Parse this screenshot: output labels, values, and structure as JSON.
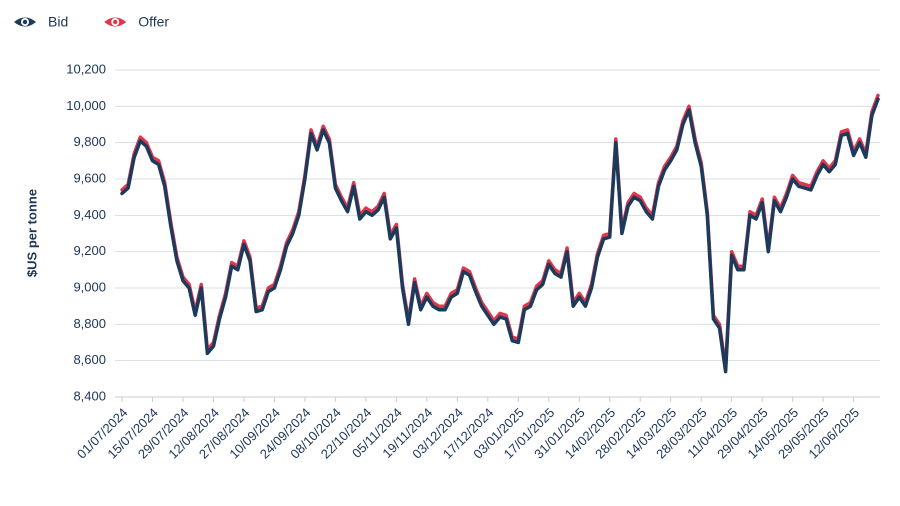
{
  "chart_data": {
    "type": "line",
    "y_label": "$US per tonne",
    "ylim": [
      8400,
      10200
    ],
    "yticks": [
      {
        "value": 8400,
        "label": "8,400"
      },
      {
        "value": 8600,
        "label": "8,600"
      },
      {
        "value": 8800,
        "label": "8,800"
      },
      {
        "value": 9000,
        "label": "9,000"
      },
      {
        "value": 9200,
        "label": "9,200"
      },
      {
        "value": 9400,
        "label": "9,400"
      },
      {
        "value": 9600,
        "label": "9,600"
      },
      {
        "value": 9800,
        "label": "9,800"
      },
      {
        "value": 10000,
        "label": "10,000"
      },
      {
        "value": 10200,
        "label": "10,200"
      }
    ],
    "grid": true,
    "legend": "top-left",
    "categories": [
      "01/07/2024",
      null,
      null,
      null,
      null,
      "15/07/2024",
      null,
      null,
      null,
      null,
      "29/07/2024",
      null,
      null,
      null,
      null,
      "12/08/2024",
      null,
      null,
      null,
      null,
      "27/08/2024",
      null,
      null,
      null,
      null,
      "10/09/2024",
      null,
      null,
      null,
      null,
      "24/09/2024",
      null,
      null,
      null,
      null,
      "08/10/2024",
      null,
      null,
      null,
      null,
      "22/10/2024",
      null,
      null,
      null,
      null,
      "05/11/2024",
      null,
      null,
      null,
      null,
      "19/11/2024",
      null,
      null,
      null,
      null,
      "03/12/2024",
      null,
      null,
      null,
      null,
      "17/12/2024",
      null,
      null,
      null,
      null,
      "03/01/2025",
      null,
      null,
      null,
      null,
      "17/01/2025",
      null,
      null,
      null,
      null,
      "31/01/2025",
      null,
      null,
      null,
      null,
      "14/02/2025",
      null,
      null,
      null,
      null,
      "28/02/2025",
      null,
      null,
      null,
      null,
      "14/03/2025",
      null,
      null,
      null,
      null,
      "28/03/2025",
      null,
      null,
      null,
      null,
      "11/04/2025",
      null,
      null,
      null,
      null,
      "29/04/2025",
      null,
      null,
      null,
      null,
      "14/05/2025",
      null,
      null,
      null,
      null,
      "29/05/2025",
      null,
      null,
      null,
      null,
      "12/06/2025",
      null,
      null,
      null,
      null
    ],
    "series": [
      {
        "name": "Bid",
        "color": "#1b3a5c",
        "values": [
          9520,
          9550,
          9720,
          9810,
          9780,
          9700,
          9680,
          9560,
          9340,
          9150,
          9040,
          9000,
          8850,
          9000,
          8640,
          8680,
          8830,
          8950,
          9120,
          9100,
          9240,
          9150,
          8870,
          8880,
          8980,
          9000,
          9100,
          9230,
          9300,
          9400,
          9600,
          9850,
          9760,
          9870,
          9800,
          9550,
          9480,
          9420,
          9560,
          9380,
          9420,
          9400,
          9430,
          9500,
          9270,
          9330,
          9000,
          8800,
          9030,
          8880,
          8950,
          8900,
          8880,
          8880,
          8950,
          8970,
          9090,
          9070,
          8980,
          8900,
          8850,
          8800,
          8840,
          8830,
          8710,
          8700,
          8880,
          8900,
          8990,
          9020,
          9130,
          9080,
          9060,
          9200,
          8900,
          8950,
          8900,
          9000,
          9170,
          9270,
          9280,
          9800,
          9300,
          9450,
          9500,
          9480,
          9420,
          9380,
          9560,
          9650,
          9700,
          9760,
          9900,
          9980,
          9800,
          9670,
          9400,
          8830,
          8780,
          8540,
          9180,
          9100,
          9100,
          9400,
          9380,
          9470,
          9200,
          9480,
          9420,
          9500,
          9600,
          9560,
          9550,
          9540,
          9620,
          9680,
          9640,
          9680,
          9840,
          9850,
          9730,
          9800,
          9720,
          9950,
          10040
        ]
      },
      {
        "name": "Offer",
        "color": "#e0364b",
        "values": [
          9540,
          9570,
          9740,
          9830,
          9800,
          9720,
          9700,
          9580,
          9360,
          9170,
          9060,
          9020,
          8870,
          9020,
          8660,
          8700,
          8850,
          8970,
          9140,
          9120,
          9260,
          9170,
          8890,
          8900,
          9000,
          9020,
          9120,
          9250,
          9320,
          9420,
          9620,
          9870,
          9780,
          9890,
          9820,
          9570,
          9500,
          9440,
          9580,
          9400,
          9440,
          9420,
          9450,
          9520,
          9290,
          9350,
          9020,
          8820,
          9050,
          8900,
          8970,
          8920,
          8900,
          8900,
          8970,
          8990,
          9110,
          9090,
          9000,
          8920,
          8870,
          8820,
          8860,
          8850,
          8730,
          8720,
          8900,
          8920,
          9010,
          9040,
          9150,
          9100,
          9080,
          9220,
          8920,
          8970,
          8920,
          9020,
          9190,
          9290,
          9300,
          9820,
          9320,
          9470,
          9520,
          9500,
          9440,
          9400,
          9580,
          9670,
          9720,
          9780,
          9920,
          10000,
          9820,
          9690,
          9420,
          8850,
          8800,
          8560,
          9200,
          9120,
          9120,
          9420,
          9400,
          9490,
          9220,
          9500,
          9440,
          9520,
          9620,
          9580,
          9570,
          9560,
          9640,
          9700,
          9660,
          9700,
          9860,
          9870,
          9750,
          9820,
          9740,
          9970,
          10060
        ]
      }
    ]
  }
}
